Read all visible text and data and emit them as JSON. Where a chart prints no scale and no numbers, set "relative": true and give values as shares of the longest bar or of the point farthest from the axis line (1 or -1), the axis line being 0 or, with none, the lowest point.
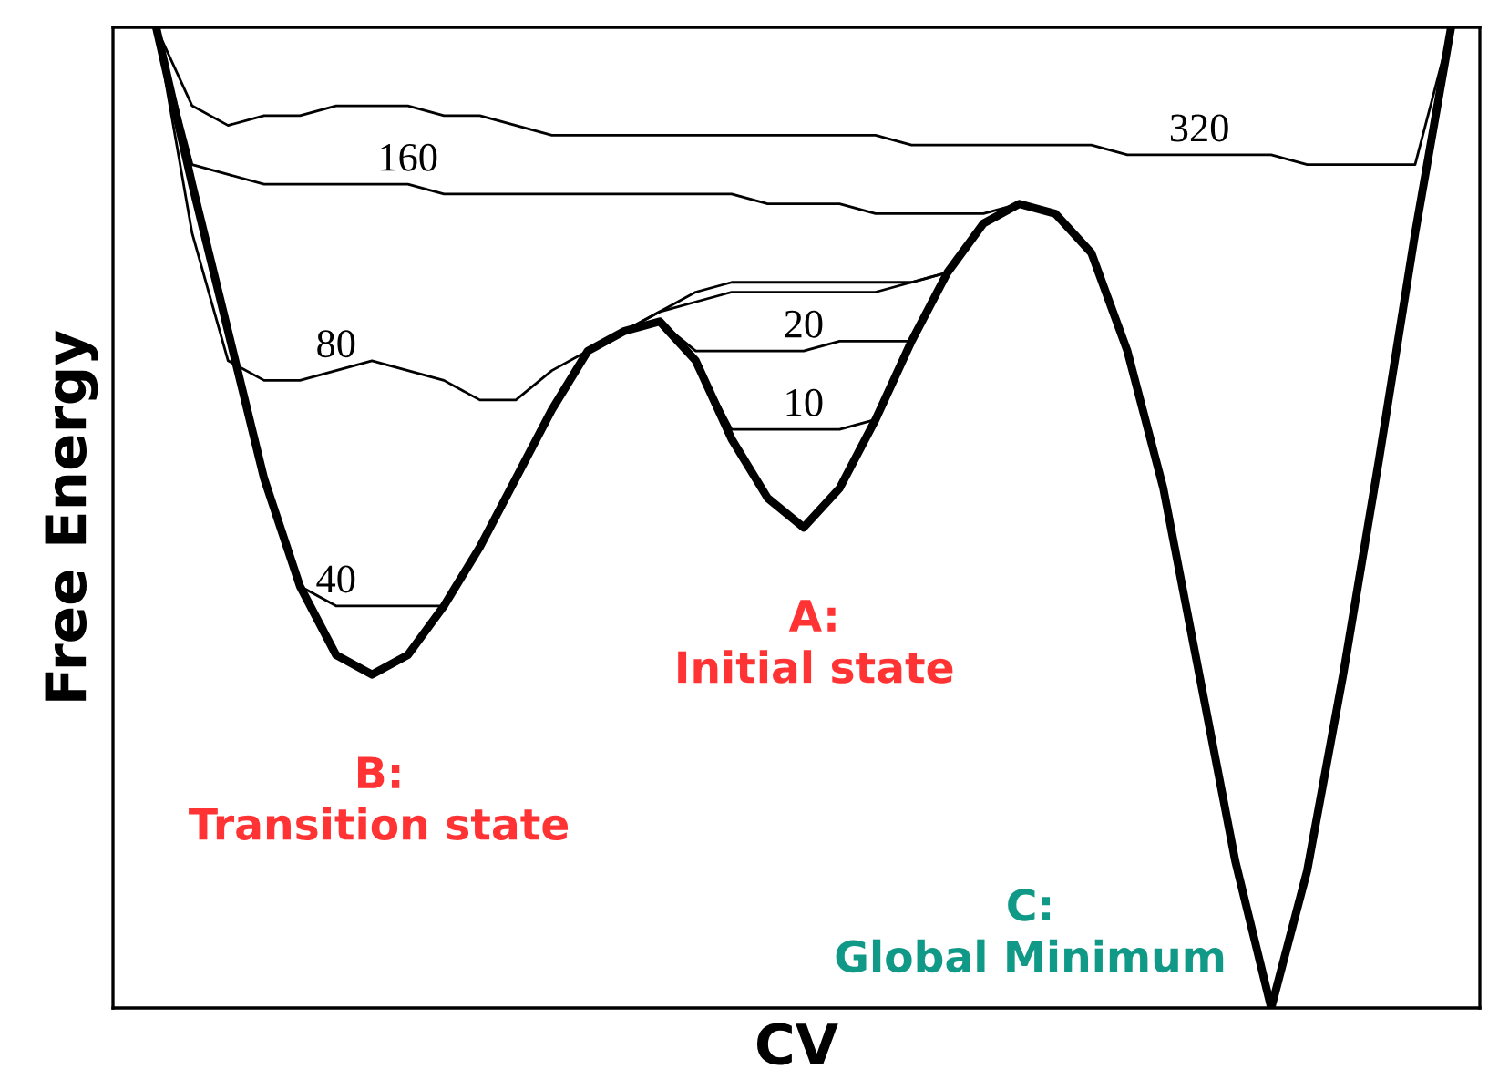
{
  "chart_data": {
    "type": "line",
    "relative": true,
    "xlabel": "CV",
    "ylabel": "Free Energy",
    "categories": [
      null,
      null,
      null,
      null,
      null,
      null,
      null,
      null,
      null,
      null,
      null,
      null,
      null,
      null,
      null,
      null,
      null,
      null,
      null,
      null,
      null,
      null,
      null,
      null,
      null,
      null,
      null,
      null,
      null,
      null,
      null,
      null,
      null,
      null,
      null,
      null,
      null
    ],
    "series": [
      {
        "name": "320",
        "color": "#000000",
        "values": [
          1.0,
          0.92,
          0.9,
          0.91,
          0.91,
          0.92,
          0.92,
          0.92,
          0.91,
          0.91,
          0.9,
          0.89,
          0.89,
          0.89,
          0.89,
          0.89,
          0.89,
          0.89,
          0.89,
          0.89,
          0.89,
          0.88,
          0.88,
          0.88,
          0.88,
          0.88,
          0.88,
          0.87,
          0.87,
          0.87,
          0.87,
          0.87,
          0.86,
          0.86,
          0.86,
          0.86,
          1.0
        ]
      },
      {
        "name": "160",
        "color": "#000000",
        "values": [
          1.0,
          0.86,
          0.85,
          0.84,
          0.84,
          0.84,
          0.84,
          0.84,
          0.83,
          0.83,
          0.83,
          0.83,
          0.83,
          0.83,
          0.83,
          0.83,
          0.83,
          0.82,
          0.82,
          0.82,
          0.81,
          0.81,
          0.81,
          0.81,
          0.82,
          null,
          null,
          null,
          null,
          null,
          null,
          null,
          null,
          null,
          null,
          null,
          null
        ]
      },
      {
        "name": "80",
        "color": "#000000",
        "values": [
          1.0,
          0.79,
          0.66,
          0.64,
          0.64,
          0.65,
          0.66,
          0.65,
          0.64,
          0.62,
          0.62,
          0.65,
          0.67,
          0.69,
          0.71,
          0.73,
          0.74,
          0.74,
          0.74,
          0.74,
          0.74,
          0.74,
          0.75,
          null,
          null,
          null,
          null,
          null,
          null,
          null,
          null,
          null,
          null,
          null,
          null,
          null,
          null
        ]
      },
      {
        "name": "40",
        "color": "#000000",
        "values": [
          null,
          null,
          null,
          null,
          0.43,
          0.41,
          0.41,
          0.41,
          0.41,
          null,
          null,
          null,
          null,
          0.69,
          0.71,
          0.72,
          0.73,
          0.73,
          0.73,
          0.73,
          0.73,
          0.74,
          0.75,
          null,
          null,
          null,
          null,
          null,
          null,
          null,
          null,
          null,
          null,
          null,
          null,
          null,
          null
        ]
      },
      {
        "name": "20",
        "color": "#000000",
        "values": [
          null,
          null,
          null,
          null,
          null,
          null,
          null,
          null,
          null,
          null,
          null,
          null,
          null,
          null,
          0.7,
          0.67,
          0.67,
          0.67,
          0.67,
          0.68,
          0.68,
          0.68,
          null,
          null,
          null,
          null,
          null,
          null,
          null,
          null,
          null,
          null,
          null,
          null,
          null,
          null,
          null
        ]
      },
      {
        "name": "10",
        "color": "#000000",
        "values": [
          null,
          null,
          null,
          null,
          null,
          null,
          null,
          null,
          null,
          null,
          null,
          null,
          null,
          null,
          null,
          0.66,
          0.59,
          0.59,
          0.59,
          0.59,
          0.6,
          null,
          null,
          null,
          null,
          null,
          null,
          null,
          null,
          null,
          null,
          null,
          null,
          null,
          null,
          null,
          null
        ]
      },
      {
        "color": "#000000",
        "values": [
          1.0,
          0.84,
          0.69,
          0.54,
          0.43,
          0.36,
          0.34,
          0.36,
          0.41,
          0.47,
          0.54,
          0.61,
          0.67,
          0.69,
          0.7,
          0.66,
          0.58,
          0.52,
          0.49,
          0.53,
          0.6,
          0.68,
          0.75,
          0.8,
          0.82,
          0.81,
          0.77,
          0.67,
          0.53,
          0.34,
          0.15,
          0.0,
          0.14,
          0.34,
          0.56,
          0.79,
          1.0
        ]
      }
    ],
    "annotations": [
      "A:\nInitial state",
      "B:\nTransition state",
      "C:\nGlobal Minimum"
    ]
  }
}
